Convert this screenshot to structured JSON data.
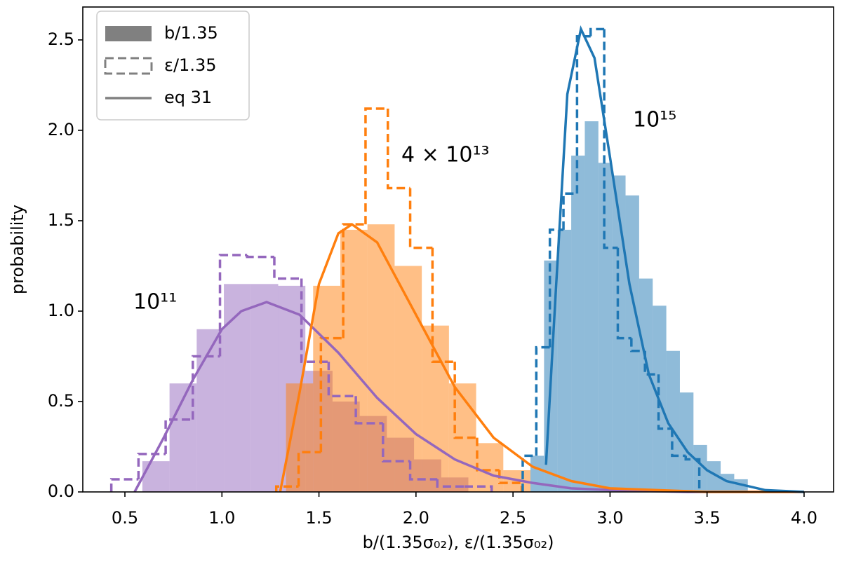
{
  "chart_data": {
    "type": "histogram",
    "x_label": "b/(1.35σ₀₂), ε/(1.35σ₀₂)",
    "y_label": "probability",
    "xlim": [
      0.283,
      4.152
    ],
    "ylim": [
      0,
      2.682
    ],
    "xticks": [
      0.5,
      {
        "value": 1.0,
        "label": "1.0"
      },
      1.5,
      {
        "value": 2.0,
        "label": "2.0"
      },
      2.5,
      {
        "value": 3.0,
        "label": "3.0"
      },
      3.5,
      {
        "value": 4.0,
        "label": "4.0"
      }
    ],
    "yticks": [
      {
        "value": 0.0,
        "label": "0.0"
      },
      0.5,
      {
        "value": 1.0,
        "label": "1.0"
      },
      1.5,
      {
        "value": 2.0,
        "label": "2.0"
      },
      2.5
    ],
    "grid": false,
    "annotations": [
      "10¹¹",
      "4 × 10¹³",
      "10¹⁵"
    ],
    "legend": {
      "loc": "upper left",
      "color": "#808080",
      "entries": [
        {
          "label": "b/1.35",
          "style": "filled"
        },
        {
          "label": "ε/1.35",
          "style": "step"
        },
        {
          "label": "eq 31",
          "style": "line"
        }
      ]
    },
    "series": [
      {
        "style": "filled",
        "color": "#9467bd",
        "bins": [
          0.59,
          0.73,
          0.87,
          1.01,
          1.15,
          1.29,
          1.43,
          1.57,
          1.71,
          1.85,
          1.99,
          2.13,
          2.27
        ],
        "counts": [
          0.17,
          0.6,
          0.9,
          1.15,
          1.15,
          1.14,
          0.67,
          0.5,
          0.42,
          0.3,
          0.18,
          0.08
        ]
      },
      {
        "style": "filled",
        "color": "#ff7f0e",
        "bins": [
          1.33,
          1.47,
          1.61,
          1.75,
          1.89,
          2.03,
          2.17,
          2.31,
          2.45,
          2.59
        ],
        "counts": [
          0.6,
          1.14,
          1.45,
          1.48,
          1.25,
          0.92,
          0.6,
          0.27,
          0.12
        ]
      },
      {
        "style": "filled",
        "color": "#1f77b4",
        "bins": [
          2.59,
          2.66,
          2.73,
          2.8,
          2.87,
          2.94,
          3.01,
          3.08,
          3.15,
          3.22,
          3.29,
          3.36,
          3.43,
          3.5,
          3.57,
          3.64,
          3.71
        ],
        "counts": [
          0.2,
          1.28,
          1.45,
          1.86,
          2.05,
          1.82,
          1.75,
          1.64,
          1.18,
          1.03,
          0.78,
          0.55,
          0.26,
          0.17,
          0.1,
          0.07
        ]
      },
      {
        "style": "step",
        "color": "#9467bd",
        "bins": [
          0.43,
          0.57,
          0.71,
          0.85,
          0.99,
          1.13,
          1.27,
          1.41,
          1.55,
          1.69,
          1.83,
          1.97,
          2.11,
          2.25,
          2.39
        ],
        "counts": [
          0.07,
          0.21,
          0.4,
          0.75,
          1.31,
          1.3,
          1.18,
          0.72,
          0.53,
          0.38,
          0.17,
          0.07,
          0.03,
          0.03
        ]
      },
      {
        "style": "step",
        "color": "#ff7f0e",
        "bins": [
          1.28,
          1.395,
          1.51,
          1.625,
          1.74,
          1.855,
          1.97,
          2.085,
          2.2,
          2.315,
          2.43,
          2.545
        ],
        "counts": [
          0.03,
          0.22,
          0.85,
          1.48,
          2.12,
          1.68,
          1.35,
          0.72,
          0.3,
          0.12,
          0.05
        ]
      },
      {
        "style": "step",
        "color": "#1f77b4",
        "bins": [
          2.55,
          2.62,
          2.69,
          2.76,
          2.83,
          2.9,
          2.97,
          3.04,
          3.11,
          3.18,
          3.25,
          3.32,
          3.39,
          3.46
        ],
        "counts": [
          0.2,
          0.8,
          1.45,
          1.65,
          2.52,
          2.56,
          1.35,
          0.85,
          0.78,
          0.65,
          0.35,
          0.2,
          0.18
        ]
      },
      {
        "style": "line",
        "color": "#9467bd",
        "x": [
          0.55,
          0.7,
          0.85,
          1.0,
          1.1,
          1.23,
          1.4,
          1.6,
          1.8,
          2.0,
          2.2,
          2.4,
          2.6,
          2.8,
          3.0,
          3.4,
          4.0
        ],
        "values": [
          0,
          0.3,
          0.62,
          0.9,
          1.0,
          1.05,
          0.98,
          0.77,
          0.52,
          0.32,
          0.18,
          0.09,
          0.05,
          0.02,
          0.01,
          0.0,
          0.0
        ]
      },
      {
        "style": "line",
        "color": "#ff7f0e",
        "x": [
          1.3,
          1.4,
          1.5,
          1.6,
          1.67,
          1.8,
          2.0,
          2.2,
          2.4,
          2.6,
          2.8,
          3.0,
          3.5,
          4.0
        ],
        "values": [
          0,
          0.55,
          1.15,
          1.43,
          1.48,
          1.38,
          0.98,
          0.58,
          0.3,
          0.14,
          0.06,
          0.02,
          0.0,
          0.0
        ]
      },
      {
        "style": "line",
        "color": "#1f77b4",
        "x": [
          2.67,
          2.72,
          2.78,
          2.85,
          2.92,
          3.0,
          3.1,
          3.2,
          3.3,
          3.4,
          3.5,
          3.6,
          3.8,
          4.0
        ],
        "values": [
          0.15,
          1.1,
          2.2,
          2.56,
          2.4,
          1.85,
          1.15,
          0.65,
          0.38,
          0.22,
          0.12,
          0.06,
          0.01,
          0.0
        ]
      }
    ]
  }
}
